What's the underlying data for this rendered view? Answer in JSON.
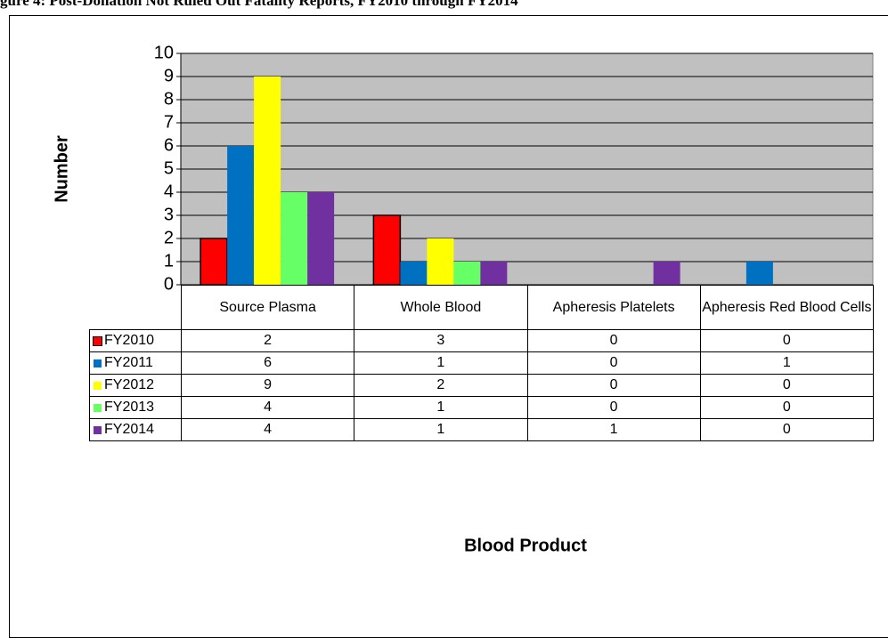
{
  "chart_data": {
    "type": "bar",
    "title": "gure 4: Post-Donation Not Ruled Out Fatality Reports, FY2010 through FY2014",
    "ylabel": "Number",
    "xlabel": "Blood Product",
    "categories": [
      "Source Plasma",
      "Whole Blood",
      "Apheresis Platelets",
      "Apheresis Red Blood Cells"
    ],
    "series": [
      {
        "name": "FY2010",
        "color": "#ff0000",
        "values": [
          2,
          3,
          0,
          0
        ]
      },
      {
        "name": "FY2011",
        "color": "#0070c0",
        "values": [
          6,
          1,
          0,
          1
        ]
      },
      {
        "name": "FY2012",
        "color": "#ffff00",
        "values": [
          9,
          2,
          0,
          0
        ]
      },
      {
        "name": "FY2013",
        "color": "#66ff66",
        "values": [
          4,
          1,
          0,
          0
        ]
      },
      {
        "name": "FY2014",
        "color": "#7030a0",
        "values": [
          4,
          1,
          1,
          0
        ]
      }
    ],
    "ylim": [
      0,
      10
    ],
    "yticks": [
      0,
      1,
      2,
      3,
      4,
      5,
      6,
      7,
      8,
      9,
      10
    ],
    "grid": true
  }
}
